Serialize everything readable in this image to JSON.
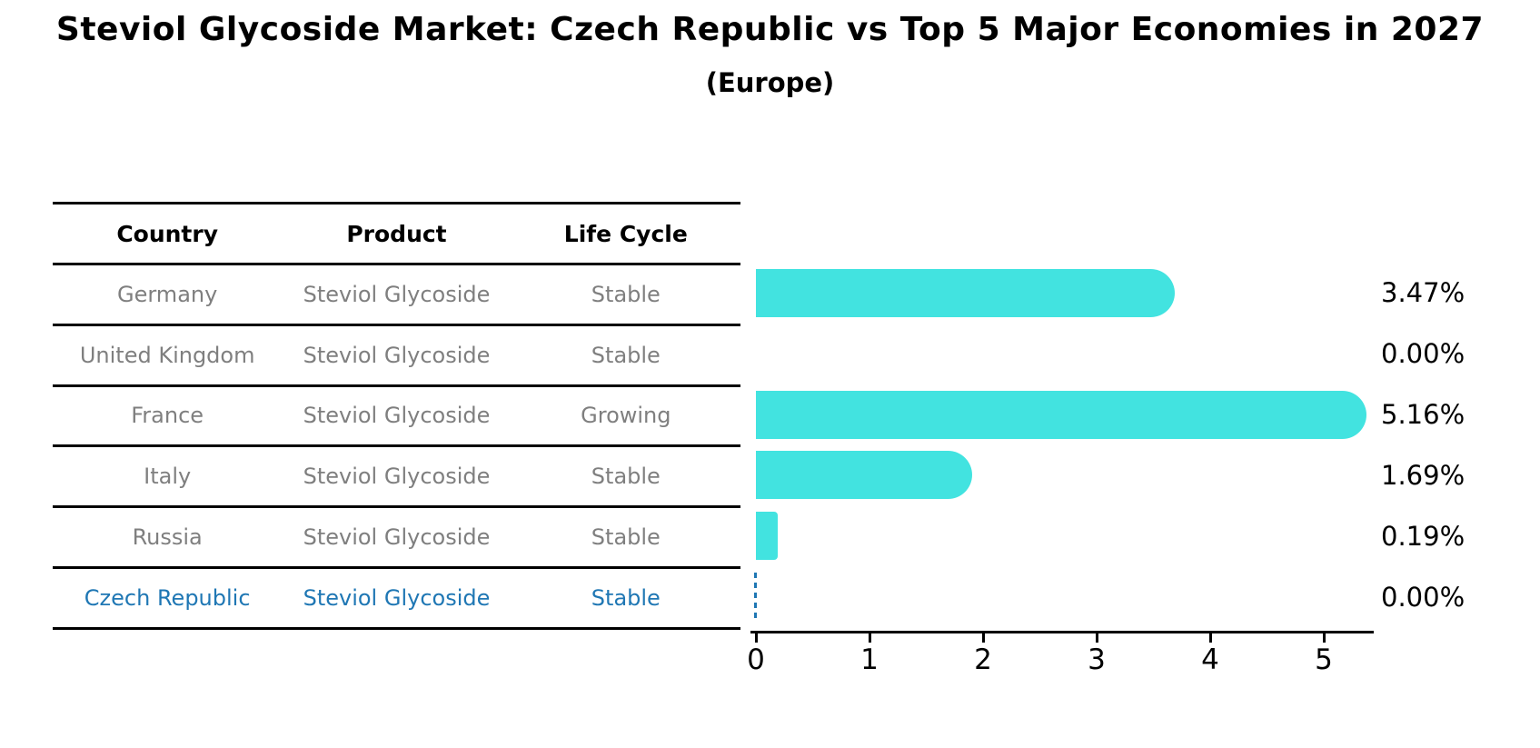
{
  "page": {
    "title": "Steviol Glycoside Market: Czech Republic vs Top 5 Major Economies in 2027",
    "subtitle": "(Europe)"
  },
  "table": {
    "headers": [
      "Country",
      "Product",
      "Life Cycle"
    ],
    "rows": [
      {
        "country": "Germany",
        "product": "Steviol Glycoside",
        "life_cycle": "Stable",
        "highlight": false
      },
      {
        "country": "United Kingdom",
        "product": "Steviol Glycoside",
        "life_cycle": "Stable",
        "highlight": false
      },
      {
        "country": "France",
        "product": "Steviol Glycoside",
        "life_cycle": "Growing",
        "highlight": false
      },
      {
        "country": "Italy",
        "product": "Steviol Glycoside",
        "life_cycle": "Stable",
        "highlight": false
      },
      {
        "country": "Russia",
        "product": "Steviol Glycoside",
        "life_cycle": "Stable",
        "highlight": false
      },
      {
        "country": "Czech Republic",
        "product": "Steviol Glycoside",
        "life_cycle": "Stable",
        "highlight": true
      }
    ]
  },
  "chart_data": {
    "type": "bar",
    "orientation": "horizontal",
    "title": "Steviol Glycoside Market: Czech Republic vs Top 5 Major Economies in 2027 (Europe)",
    "categories": [
      "Germany",
      "United Kingdom",
      "France",
      "Italy",
      "Russia",
      "Czech Republic"
    ],
    "values": [
      3.47,
      0.0,
      5.16,
      1.69,
      0.19,
      0.0
    ],
    "value_labels": [
      "3.47%",
      "0.00%",
      "5.16%",
      "1.69%",
      "0.19%",
      "0.00%"
    ],
    "x_ticks": [
      "0",
      "1",
      "2",
      "3",
      "4",
      "5"
    ],
    "xlim": [
      0,
      5.45
    ],
    "grid": false,
    "legend": false,
    "bar_color": "#42e3e0",
    "highlight_color": "#1f77b4",
    "highlight_index": 5
  }
}
